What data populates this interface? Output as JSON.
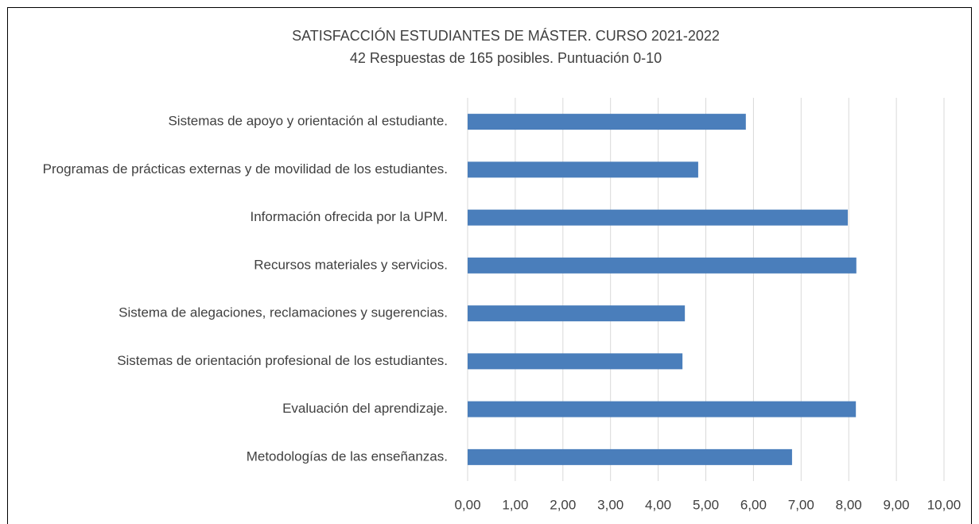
{
  "chart_data": {
    "type": "barh",
    "title": "SATISFACCIÓN ESTUDIANTES DE MÁSTER. CURSO 2021-2022",
    "subtitle": "42 Respuestas de 165 posibles. Puntuación 0-10",
    "categories": [
      "Sistemas de apoyo y orientación al estudiante.",
      "Programas de prácticas externas y de movilidad de los estudiantes.",
      "Información ofrecida por la UPM.",
      "Recursos materiales y servicios.",
      "Sistema de alegaciones, reclamaciones y sugerencias.",
      "Sistemas de orientación profesional de los estudiantes.",
      "Evaluación del aprendizaje.",
      "Metodologías de las enseñanzas."
    ],
    "values": [
      5.84,
      4.84,
      7.98,
      8.16,
      4.56,
      4.51,
      8.15,
      6.81
    ],
    "color": "#4a7ebb",
    "xlim": [
      0,
      10
    ],
    "xticks": [
      {
        "value": 0,
        "label": "0,00"
      },
      {
        "value": 1,
        "label": "1,00"
      },
      {
        "value": 2,
        "label": "2,00"
      },
      {
        "value": 3,
        "label": "3,00"
      },
      {
        "value": 4,
        "label": "4,00"
      },
      {
        "value": 5,
        "label": "5,00"
      },
      {
        "value": 6,
        "label": "6,00"
      },
      {
        "value": 7,
        "label": "7,00"
      },
      {
        "value": 8,
        "label": "8,00"
      },
      {
        "value": 9,
        "label": "9,00"
      },
      {
        "value": 10,
        "label": "10,00"
      }
    ],
    "grid": true
  }
}
